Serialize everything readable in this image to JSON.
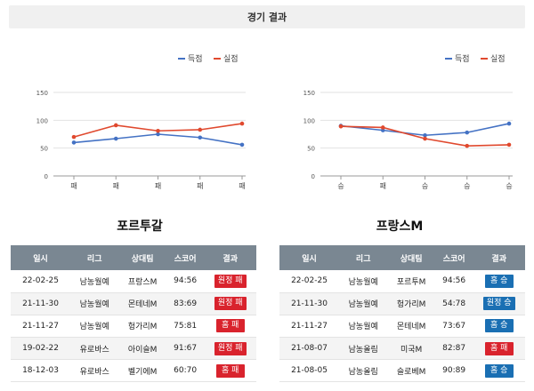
{
  "header": {
    "title": "경기 결과"
  },
  "colors": {
    "score_line": "#4472c4",
    "concede_line": "#e0492e",
    "win": "#1a6fb3",
    "loss": "#d9232d",
    "table_header": "#7a8792"
  },
  "chart_data": [
    {
      "type": "line",
      "legend": [
        "득점",
        "실점"
      ],
      "legend_position": "top-right",
      "categories": [
        "패",
        "패",
        "패",
        "패",
        "패"
      ],
      "y_ticks": [
        0,
        50,
        100,
        150
      ],
      "ylim": [
        0,
        150
      ],
      "grid": true,
      "series": [
        {
          "name": "득점",
          "values": [
            60,
            67,
            75,
            69,
            56
          ]
        },
        {
          "name": "실점",
          "values": [
            70,
            91,
            81,
            83,
            94
          ]
        }
      ]
    },
    {
      "type": "line",
      "legend": [
        "득점",
        "실점"
      ],
      "legend_position": "top-right",
      "categories": [
        "승",
        "패",
        "승",
        "승",
        "승"
      ],
      "y_ticks": [
        0,
        50,
        100,
        150
      ],
      "ylim": [
        0,
        150
      ],
      "grid": true,
      "series": [
        {
          "name": "득점",
          "values": [
            90,
            82,
            73,
            78,
            94
          ]
        },
        {
          "name": "실점",
          "values": [
            89,
            87,
            67,
            54,
            56
          ]
        }
      ]
    }
  ],
  "teams": [
    {
      "name": "포르투갈",
      "columns": [
        "일시",
        "리그",
        "상대팀",
        "스코어",
        "결과"
      ],
      "rows": [
        {
          "date": "22-02-25",
          "league": "남농월예",
          "opponent": "프랑스M",
          "score": "94:56",
          "result": "원정 패",
          "outcome": "loss"
        },
        {
          "date": "21-11-30",
          "league": "남농월예",
          "opponent": "몬테네M",
          "score": "83:69",
          "result": "원정 패",
          "outcome": "loss"
        },
        {
          "date": "21-11-27",
          "league": "남농월예",
          "opponent": "헝가리M",
          "score": "75:81",
          "result": "홈 패",
          "outcome": "loss"
        },
        {
          "date": "19-02-22",
          "league": "유로바스",
          "opponent": "아이슬M",
          "score": "91:67",
          "result": "원정 패",
          "outcome": "loss"
        },
        {
          "date": "18-12-03",
          "league": "유로바스",
          "opponent": "벨기에M",
          "score": "60:70",
          "result": "홈 패",
          "outcome": "loss"
        }
      ]
    },
    {
      "name": "프랑스M",
      "columns": [
        "일시",
        "리그",
        "상대팀",
        "스코어",
        "결과"
      ],
      "rows": [
        {
          "date": "22-02-25",
          "league": "남농월예",
          "opponent": "포르투M",
          "score": "94:56",
          "result": "홈 승",
          "outcome": "win"
        },
        {
          "date": "21-11-30",
          "league": "남농월예",
          "opponent": "헝가리M",
          "score": "54:78",
          "result": "원정 승",
          "outcome": "win"
        },
        {
          "date": "21-11-27",
          "league": "남농월예",
          "opponent": "몬테네M",
          "score": "73:67",
          "result": "홈 승",
          "outcome": "win"
        },
        {
          "date": "21-08-07",
          "league": "남농올림",
          "opponent": "미국M",
          "score": "82:87",
          "result": "홈 패",
          "outcome": "loss"
        },
        {
          "date": "21-08-05",
          "league": "남농올림",
          "opponent": "슬로베M",
          "score": "90:89",
          "result": "홈 승",
          "outcome": "win"
        }
      ]
    }
  ]
}
